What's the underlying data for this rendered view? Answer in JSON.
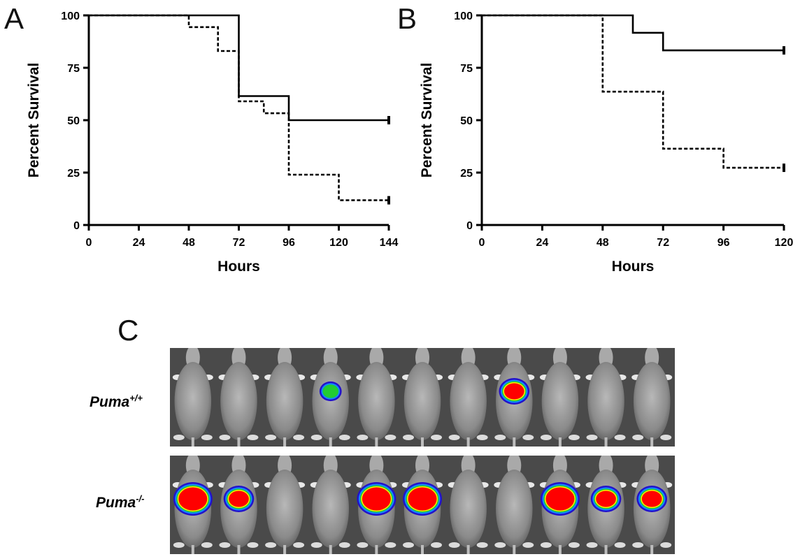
{
  "panels": {
    "a": "A",
    "b": "B",
    "c": "C"
  },
  "chart_data": [
    {
      "type": "line",
      "panel": "A",
      "xlabel": "Hours",
      "ylabel": "Percent Survival",
      "xlim": [
        0,
        144
      ],
      "ylim": [
        0,
        100
      ],
      "xticks": [
        0,
        24,
        48,
        72,
        96,
        120,
        144
      ],
      "yticks": [
        0,
        25,
        50,
        75,
        100
      ],
      "step": true,
      "series": [
        {
          "style": "solid",
          "x": [
            0,
            72,
            96,
            144
          ],
          "y": [
            100,
            61.5,
            50,
            50
          ]
        },
        {
          "style": "dashed",
          "x": [
            0,
            48,
            62,
            72,
            84,
            96,
            120,
            144
          ],
          "y": [
            100,
            94.4,
            83,
            59,
            53.3,
            24,
            11.8,
            11.8
          ]
        }
      ]
    },
    {
      "type": "line",
      "panel": "B",
      "xlabel": "Hours",
      "ylabel": "Percent Survival",
      "xlim": [
        0,
        120
      ],
      "ylim": [
        0,
        100
      ],
      "xticks": [
        0,
        24,
        48,
        72,
        96,
        120
      ],
      "yticks": [
        0,
        25,
        50,
        75,
        100
      ],
      "step": true,
      "series": [
        {
          "style": "solid",
          "x": [
            0,
            60,
            72,
            120
          ],
          "y": [
            100,
            91.7,
            83.3,
            83.3
          ]
        },
        {
          "style": "dashed",
          "x": [
            0,
            48,
            72,
            96,
            120
          ],
          "y": [
            100,
            63.6,
            36.4,
            27.3,
            27.3
          ]
        }
      ]
    }
  ],
  "imaging": {
    "rows": [
      {
        "name_base": "Puma",
        "name_sup": "+/+",
        "signals": [
          {
            "mouse": 4,
            "level": "low"
          },
          {
            "mouse": 8,
            "level": "medium"
          }
        ]
      },
      {
        "name_base": "Puma",
        "name_sup": "-/-",
        "signals": [
          {
            "mouse": 1,
            "level": "high"
          },
          {
            "mouse": 2,
            "level": "medium"
          },
          {
            "mouse": 5,
            "level": "high"
          },
          {
            "mouse": 6,
            "level": "high"
          },
          {
            "mouse": 9,
            "level": "high"
          },
          {
            "mouse": 10,
            "level": "medium"
          },
          {
            "mouse": 11,
            "level": "medium"
          }
        ]
      }
    ],
    "mice_per_row": 11,
    "heat_colors": [
      "#ff0000",
      "#ffee00",
      "#22cc33",
      "#1188ff",
      "#2211cc"
    ]
  }
}
